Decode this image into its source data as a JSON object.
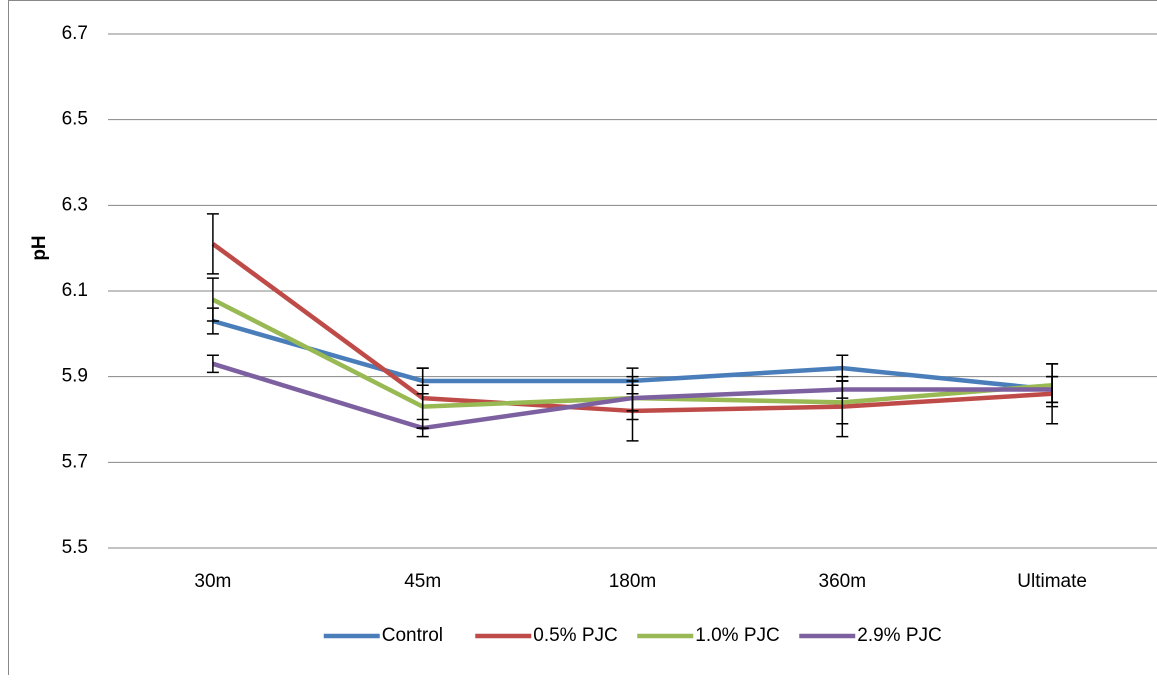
{
  "chart_data": {
    "type": "line",
    "y_label": "pH",
    "categories": [
      "30m",
      "45m",
      "180m",
      "360m",
      "Ultimate"
    ],
    "ylim": [
      5.5,
      6.7
    ],
    "yticks": [
      5.5,
      5.7,
      5.9,
      6.1,
      6.3,
      6.5,
      6.7
    ],
    "grid": true,
    "legend": "bottom",
    "series": [
      {
        "name": "Control",
        "color": "#4a7ebb",
        "values": [
          6.03,
          5.89,
          5.89,
          5.92,
          5.87
        ],
        "errors": [
          0.03,
          0.03,
          0.03,
          0.03,
          0.03
        ]
      },
      {
        "name": "0.5% PJC",
        "color": "#be4b48",
        "values": [
          6.21,
          5.85,
          5.82,
          5.83,
          5.86
        ],
        "errors": [
          0.07,
          0.07,
          0.07,
          0.07,
          0.07
        ]
      },
      {
        "name": "1.0% PJC",
        "color": "#98b954",
        "values": [
          6.08,
          5.83,
          5.85,
          5.84,
          5.88
        ],
        "errors": [
          0.05,
          0.05,
          0.05,
          0.05,
          0.05
        ]
      },
      {
        "name": "2.9% PJC",
        "color": "#7d60a0",
        "values": [
          5.93,
          5.78,
          5.85,
          5.87,
          5.87
        ],
        "errors": [
          0.02,
          0.02,
          0.03,
          0.02,
          0.03
        ]
      }
    ]
  }
}
